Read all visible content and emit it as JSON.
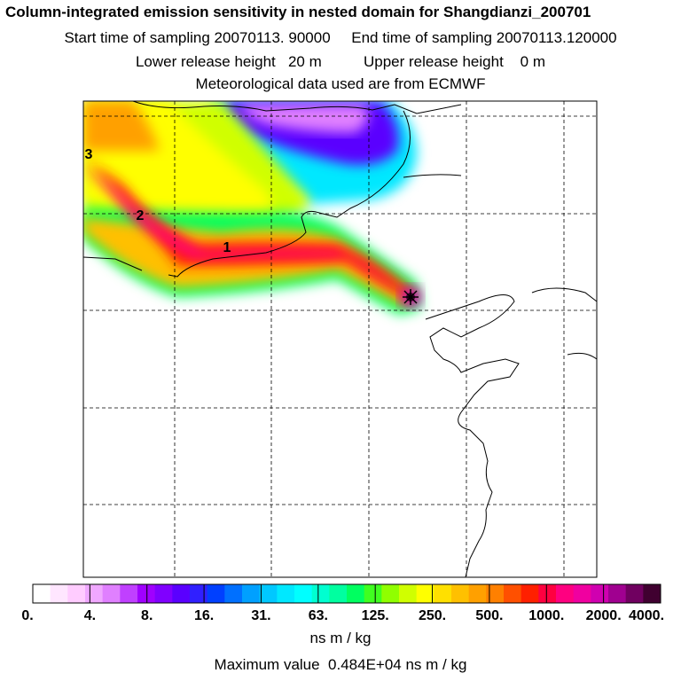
{
  "header": {
    "title": "Column-integrated emission sensitivity in nested domain for Shangdianzi_200701",
    "line2": "Start time of sampling 20070113. 90000     End time of sampling 20070113.120000",
    "line3": "Lower release height   20 m          Upper release height    0 m",
    "line4": "Meteorological data used are from ECMWF"
  },
  "map": {
    "markers": [
      {
        "label": "1"
      },
      {
        "label": "2"
      },
      {
        "label": "3"
      }
    ],
    "receptor": "star-marker"
  },
  "colorbar": {
    "tick_labels": [
      "0.",
      "4.",
      "8.",
      "16.",
      "31.",
      "63.",
      "125.",
      "250.",
      "500.",
      "1000.",
      "2000.",
      "4000."
    ],
    "colors": [
      "#ffffff",
      "#ffe6ff",
      "#ffccff",
      "#f0a8ff",
      "#e080ff",
      "#c040ff",
      "#a000ff",
      "#8000ff",
      "#5a00ff",
      "#3020ff",
      "#0040ff",
      "#0070ff",
      "#00a0ff",
      "#00c8ff",
      "#00e8ff",
      "#00ffff",
      "#00ffd0",
      "#00ffa0",
      "#00ff60",
      "#40ff20",
      "#90ff00",
      "#d0ff00",
      "#ffff00",
      "#ffe000",
      "#ffc000",
      "#ffa000",
      "#ff8000",
      "#ff5000",
      "#ff2000",
      "#ff0040",
      "#ff0080",
      "#f000a0",
      "#d000b0",
      "#a00090",
      "#700060",
      "#400030"
    ],
    "unit": "ns m / kg"
  },
  "max_value_text": "Maximum value  0.484E+04 ns m / kg"
}
